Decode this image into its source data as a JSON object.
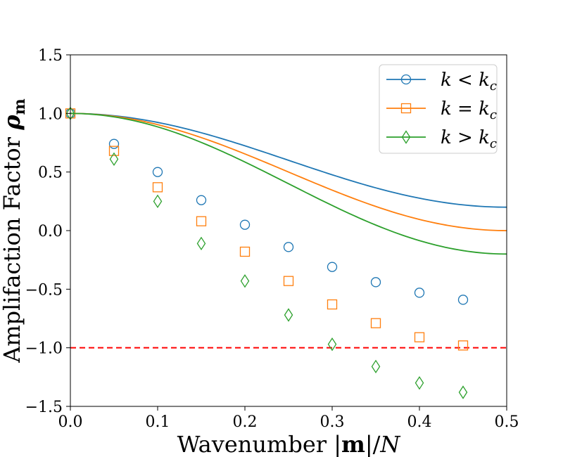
{
  "chart_data": {
    "type": "line",
    "title": "",
    "xlabel": "Wavenumber |m|/N",
    "ylabel": "Amplifaction Factor ρm",
    "xlim": [
      0.0,
      0.5
    ],
    "ylim": [
      -1.5,
      1.5
    ],
    "xticks": [
      0.0,
      0.1,
      0.2,
      0.3,
      0.4,
      0.5
    ],
    "xtick_labels": [
      "0.0",
      "0.1",
      "0.2",
      "0.3",
      "0.4",
      "0.5"
    ],
    "yticks": [
      1.5,
      1.0,
      0.5,
      0.0,
      -0.5,
      -1.0,
      -1.5
    ],
    "ytick_labels": [
      "1.5",
      "1.0",
      "0.5",
      "0.0",
      "−0.5",
      "−1.0",
      "−1.5"
    ],
    "legend_position": "top-right",
    "grid": false,
    "series": [
      {
        "name": "k < kc",
        "color": "#1f77b4",
        "marker": "circle",
        "amplitude": 0.8,
        "x": [
          0.0,
          0.05,
          0.1,
          0.15,
          0.2,
          0.25,
          0.3,
          0.35,
          0.4,
          0.45
        ],
        "y": [
          1.0,
          0.74,
          0.5,
          0.26,
          0.05,
          -0.14,
          -0.31,
          -0.44,
          -0.53,
          -0.59
        ]
      },
      {
        "name": "k = kc",
        "color": "#ff7f0e",
        "marker": "square",
        "amplitude": 1.0,
        "x": [
          0.0,
          0.05,
          0.1,
          0.15,
          0.2,
          0.25,
          0.3,
          0.35,
          0.4,
          0.45
        ],
        "y": [
          1.0,
          0.68,
          0.37,
          0.08,
          -0.18,
          -0.43,
          -0.63,
          -0.79,
          -0.91,
          -0.98
        ]
      },
      {
        "name": "k > kc",
        "color": "#2ca02c",
        "marker": "diamond",
        "amplitude": 1.2,
        "x": [
          0.0,
          0.05,
          0.1,
          0.15,
          0.2,
          0.25,
          0.3,
          0.35,
          0.4,
          0.45
        ],
        "y": [
          1.0,
          0.61,
          0.25,
          -0.11,
          -0.43,
          -0.72,
          -0.97,
          -1.16,
          -1.3,
          -1.38
        ]
      }
    ],
    "reference_line": {
      "y": -1.0,
      "color": "#ff0000",
      "style": "dashed"
    }
  }
}
